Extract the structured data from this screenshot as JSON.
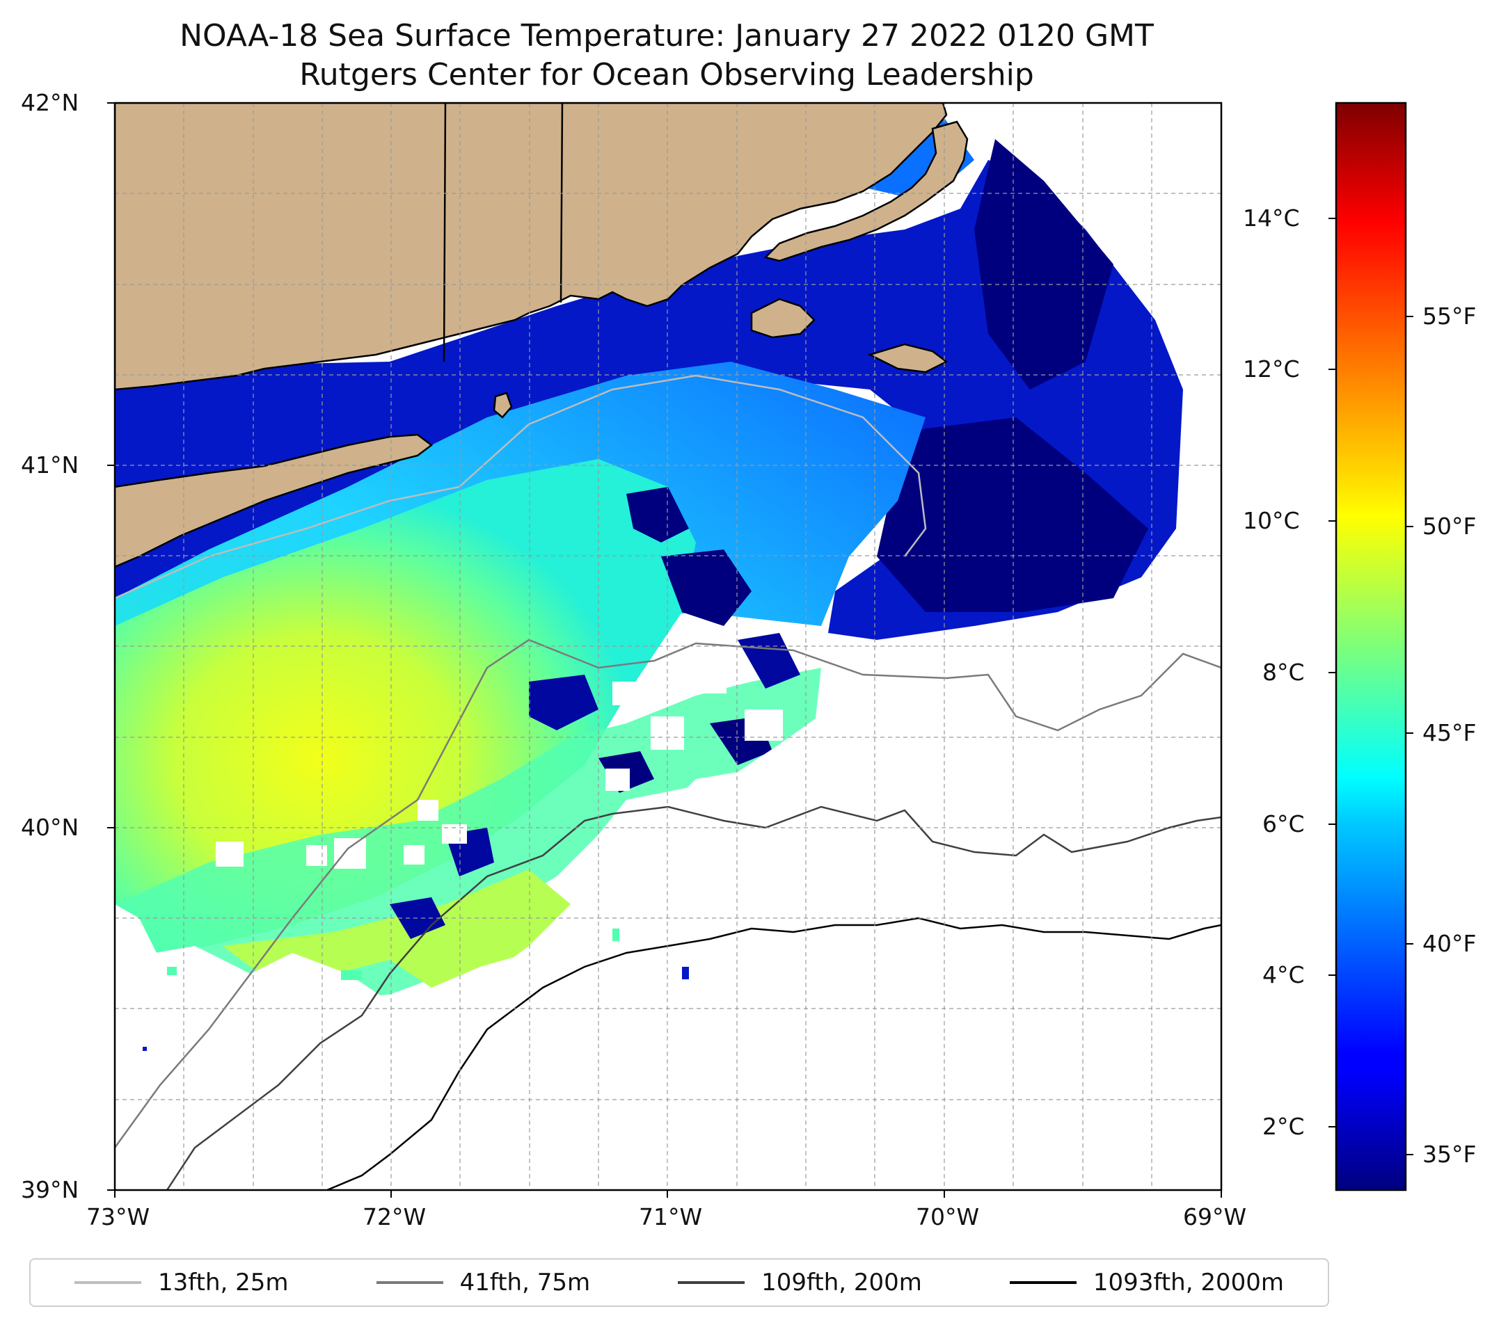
{
  "title": "NOAA-18 Sea Surface Temperature: January 27 2022 0120 GMT",
  "subtitle": "Rutgers Center for Ocean Observing Leadership",
  "map": {
    "lon_range": [
      -73,
      -69
    ],
    "lat_range": [
      39,
      42
    ],
    "x_ticks": [
      "73°W",
      "72°W",
      "71°W",
      "70°W",
      "69°W"
    ],
    "y_ticks": [
      "42°N",
      "41°N",
      "40°N",
      "39°N"
    ],
    "gridlines": true,
    "land_color": "#cfb28b"
  },
  "colorbar": {
    "colormap": "jet",
    "celsius_ticks": [
      "14°C",
      "12°C",
      "10°C",
      "8°C",
      "6°C",
      "4°C",
      "2°C"
    ],
    "fahrenheit_ticks": [
      "55°F",
      "50°F",
      "45°F",
      "40°F",
      "35°F"
    ]
  },
  "legend": [
    {
      "label": "13fth, 25m",
      "color": "#bdbdbd"
    },
    {
      "label": "41fth, 75m",
      "color": "#7a7a7a"
    },
    {
      "label": "109fth, 200m",
      "color": "#404040"
    },
    {
      "label": "1093fth, 2000m",
      "color": "#000000"
    }
  ]
}
